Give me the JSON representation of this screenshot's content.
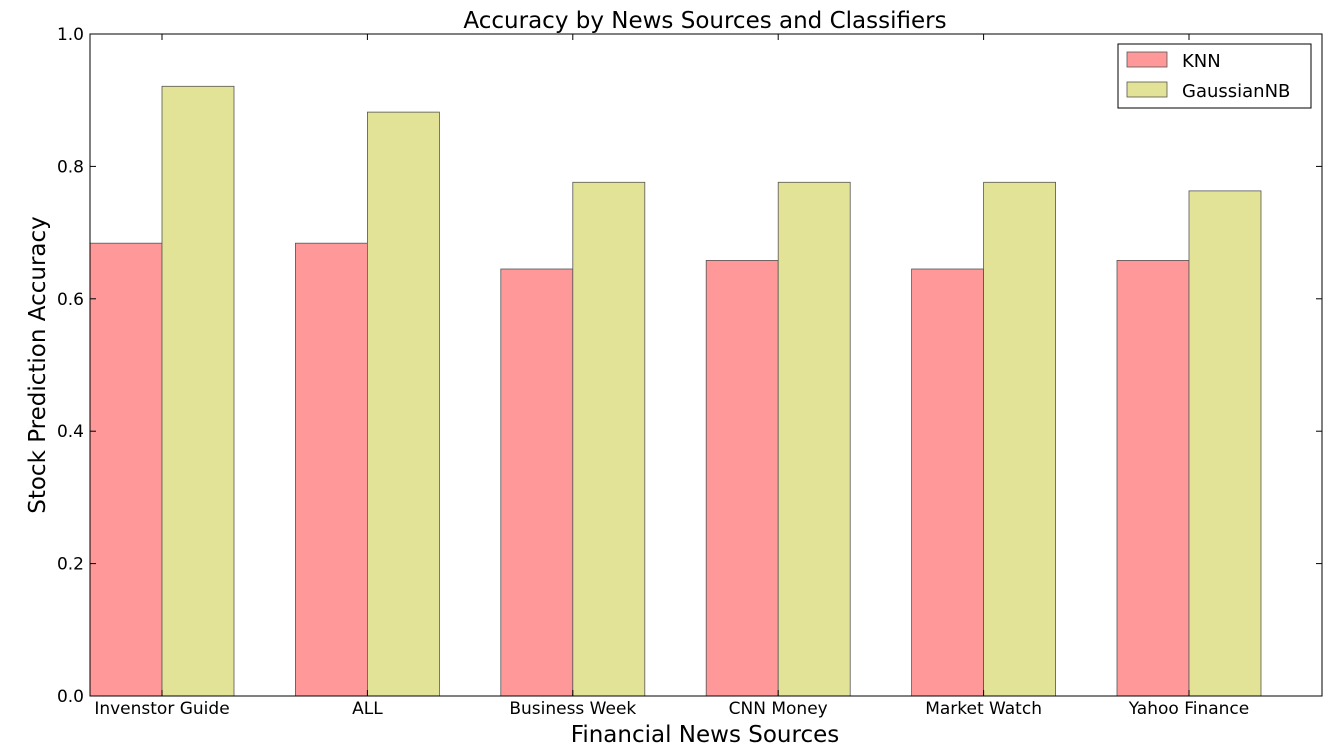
{
  "chart_data": {
    "type": "bar",
    "title": "Accuracy by News Sources and Classifiers",
    "xlabel": "Financial News Sources",
    "ylabel": "Stock Prediction Accuracy",
    "ylim": [
      0.0,
      1.0
    ],
    "yticks": [
      "0.0",
      "0.2",
      "0.4",
      "0.6",
      "0.8",
      "1.0"
    ],
    "categories": [
      "Invenstor Guide",
      "ALL",
      "Business Week",
      "CNN Money",
      "Market Watch",
      "Yahoo Finance"
    ],
    "series": [
      {
        "name": "KNN",
        "color": "#ff9999",
        "values": [
          0.684,
          0.684,
          0.645,
          0.658,
          0.645,
          0.658
        ]
      },
      {
        "name": "GaussianNB",
        "color": "#e3e398",
        "values": [
          0.921,
          0.882,
          0.776,
          0.776,
          0.776,
          0.763
        ]
      }
    ],
    "legend": "top-right",
    "grid": false
  }
}
